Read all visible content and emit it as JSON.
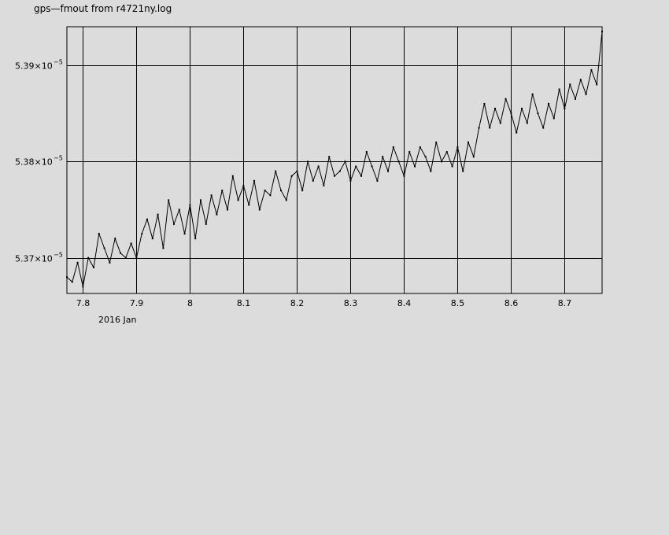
{
  "chart_data": {
    "type": "line",
    "title": "gps—fmout from r4721ny.log",
    "xlabel": "2016 Jan",
    "ylabel": "",
    "xlim": [
      7.77,
      8.77
    ],
    "ylim": [
      5.3663e-05,
      5.394e-05
    ],
    "x_ticks": [
      7.8,
      7.9,
      8.0,
      8.1,
      8.2,
      8.3,
      8.4,
      8.5,
      8.6,
      8.7
    ],
    "x_tick_labels": [
      "7.8",
      "7.9",
      "8",
      "8.1",
      "8.2",
      "8.3",
      "8.4",
      "8.5",
      "8.6",
      "8.7"
    ],
    "y_ticks": [
      {
        "value": 5.37e-05,
        "mantissa": "5.37×10",
        "exponent": "−5"
      },
      {
        "value": 5.38e-05,
        "mantissa": "5.38×10",
        "exponent": "−5"
      },
      {
        "value": 5.39e-05,
        "mantissa": "5.39×10",
        "exponent": "−5"
      }
    ],
    "grid": true,
    "series": [
      {
        "color": "#000000",
        "x": [
          7.77,
          7.78,
          7.79,
          7.8,
          7.81,
          7.82,
          7.83,
          7.84,
          7.85,
          7.86,
          7.87,
          7.88,
          7.89,
          7.9,
          7.91,
          7.92,
          7.93,
          7.94,
          7.95,
          7.96,
          7.97,
          7.98,
          7.99,
          8.0,
          8.01,
          8.02,
          8.03,
          8.04,
          8.05,
          8.06,
          8.07,
          8.08,
          8.09,
          8.1,
          8.11,
          8.12,
          8.13,
          8.14,
          8.15,
          8.16,
          8.17,
          8.18,
          8.19,
          8.2,
          8.21,
          8.22,
          8.23,
          8.24,
          8.25,
          8.26,
          8.27,
          8.28,
          8.29,
          8.3,
          8.31,
          8.32,
          8.33,
          8.34,
          8.35,
          8.36,
          8.37,
          8.38,
          8.39,
          8.4,
          8.41,
          8.42,
          8.43,
          8.44,
          8.45,
          8.46,
          8.47,
          8.48,
          8.49,
          8.5,
          8.51,
          8.52,
          8.53,
          8.54,
          8.55,
          8.56,
          8.57,
          8.58,
          8.59,
          8.6,
          8.61,
          8.62,
          8.63,
          8.64,
          8.65,
          8.66,
          8.67,
          8.68,
          8.69,
          8.7,
          8.71,
          8.72,
          8.73,
          8.74,
          8.75,
          8.76,
          8.77
        ],
        "y": [
          5.368e-05,
          5.3675e-05,
          5.3695e-05,
          5.367e-05,
          5.37e-05,
          5.369e-05,
          5.3725e-05,
          5.371e-05,
          5.3695e-05,
          5.372e-05,
          5.3705e-05,
          5.37e-05,
          5.3715e-05,
          5.37e-05,
          5.3725e-05,
          5.374e-05,
          5.372e-05,
          5.3745e-05,
          5.371e-05,
          5.376e-05,
          5.3735e-05,
          5.375e-05,
          5.3725e-05,
          5.3755e-05,
          5.372e-05,
          5.376e-05,
          5.3735e-05,
          5.3765e-05,
          5.3745e-05,
          5.377e-05,
          5.375e-05,
          5.3785e-05,
          5.376e-05,
          5.3775e-05,
          5.3755e-05,
          5.378e-05,
          5.375e-05,
          5.377e-05,
          5.3765e-05,
          5.379e-05,
          5.377e-05,
          5.376e-05,
          5.3785e-05,
          5.379e-05,
          5.377e-05,
          5.38e-05,
          5.378e-05,
          5.3795e-05,
          5.3775e-05,
          5.3805e-05,
          5.3785e-05,
          5.379e-05,
          5.38e-05,
          5.378e-05,
          5.3795e-05,
          5.3785e-05,
          5.381e-05,
          5.3795e-05,
          5.378e-05,
          5.3805e-05,
          5.379e-05,
          5.3815e-05,
          5.38e-05,
          5.3785e-05,
          5.381e-05,
          5.3795e-05,
          5.3815e-05,
          5.3805e-05,
          5.379e-05,
          5.382e-05,
          5.38e-05,
          5.381e-05,
          5.3795e-05,
          5.3815e-05,
          5.379e-05,
          5.382e-05,
          5.3805e-05,
          5.3835e-05,
          5.386e-05,
          5.3835e-05,
          5.3855e-05,
          5.384e-05,
          5.3865e-05,
          5.385e-05,
          5.383e-05,
          5.3855e-05,
          5.384e-05,
          5.387e-05,
          5.385e-05,
          5.3835e-05,
          5.386e-05,
          5.3845e-05,
          5.3875e-05,
          5.3855e-05,
          5.388e-05,
          5.3865e-05,
          5.3885e-05,
          5.387e-05,
          5.3895e-05,
          5.388e-05,
          5.3935e-05
        ]
      }
    ]
  }
}
